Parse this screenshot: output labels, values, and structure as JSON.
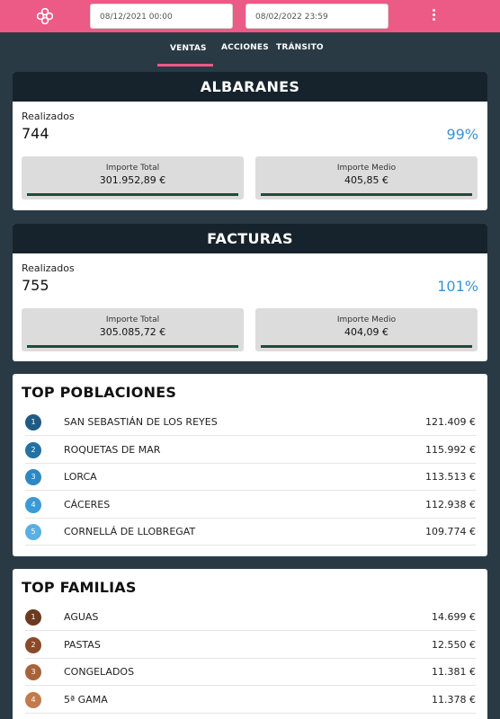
{
  "header": {
    "date_from": "08/12/2021 00:00",
    "date_to": "08/02/2022 23:59",
    "logo_icon": "cross-logo-icon",
    "menu_icon": "kebab-menu-icon"
  },
  "tabs": [
    {
      "label": "VENTAS",
      "active": true
    },
    {
      "label": "ACCIONES",
      "active": false
    },
    {
      "label": "TRÁNSITO",
      "active": false
    }
  ],
  "albaranes": {
    "title": "ALBARANES",
    "realizados_label": "Realizados",
    "realizados_value": "744",
    "percent": "99%",
    "importe_total_label": "Importe Total",
    "importe_total_value": "301.952,89 €",
    "importe_medio_label": "Importe Medio",
    "importe_medio_value": "405,85 €"
  },
  "facturas": {
    "title": "FACTURAS",
    "realizados_label": "Realizados",
    "realizados_value": "755",
    "percent": "101%",
    "importe_total_label": "Importe Total",
    "importe_total_value": "305.085,72 €",
    "importe_medio_label": "Importe Medio",
    "importe_medio_value": "404,09 €"
  },
  "top_poblaciones": {
    "title": "TOP POBLACIONES",
    "items": [
      {
        "rank": "1",
        "name": "SAN SEBASTIÁN DE LOS REYES",
        "value": "121.409 €",
        "color": "#1f5b85"
      },
      {
        "rank": "2",
        "name": "ROQUETAS DE MAR",
        "value": "115.992 €",
        "color": "#2471a3"
      },
      {
        "rank": "3",
        "name": "LORCA",
        "value": "113.513 €",
        "color": "#2d88c2"
      },
      {
        "rank": "4",
        "name": "CÁCERES",
        "value": "112.938 €",
        "color": "#3a9ad6"
      },
      {
        "rank": "5",
        "name": "CORNELLÁ DE LLOBREGAT",
        "value": "109.774 €",
        "color": "#5ab0e3"
      }
    ]
  },
  "top_familias": {
    "title": "TOP FAMILIAS",
    "items": [
      {
        "rank": "1",
        "name": "AGUAS",
        "value": "14.699 €",
        "color": "#6b3a1f"
      },
      {
        "rank": "2",
        "name": "PASTAS",
        "value": "12.550 €",
        "color": "#8a4a28"
      },
      {
        "rank": "3",
        "name": "CONGELADOS",
        "value": "11.381 €",
        "color": "#a8623a"
      },
      {
        "rank": "4",
        "name": "5ª GAMA",
        "value": "11.378 €",
        "color": "#c27a4c"
      }
    ]
  }
}
